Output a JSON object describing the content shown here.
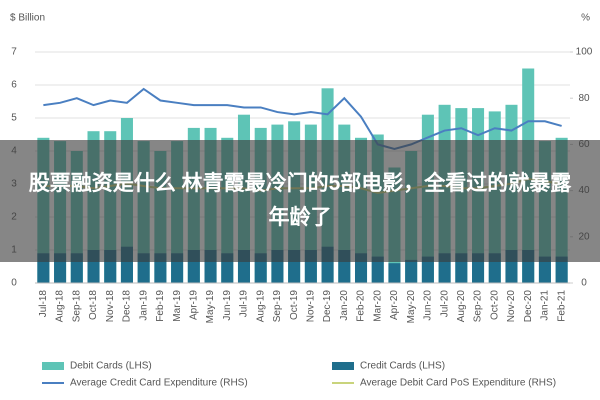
{
  "chart_data": {
    "type": "bar_line",
    "y_unit": "$ Billion",
    "y2_unit": "%",
    "categories": [
      "Jul-18",
      "Aug-18",
      "Sep-18",
      "Oct-18",
      "Nov-18",
      "Dec-18",
      "Jan-19",
      "Feb-19",
      "Mar-19",
      "Apr-19",
      "May-19",
      "Jun-19",
      "Jul-19",
      "Aug-19",
      "Sep-19",
      "Oct-19",
      "Nov-19",
      "Dec-19",
      "Jan-20",
      "Feb-20",
      "Mar-20",
      "Apr-20",
      "May-20",
      "Jun-20",
      "Jul-20",
      "Aug-20",
      "Sep-20",
      "Oct-20",
      "Nov-20",
      "Dec-20",
      "Jan-21",
      "Feb-21"
    ],
    "series": [
      {
        "name": "Debit Cards (LHS)",
        "kind": "bar",
        "color": "#5ec4b6",
        "values": [
          4.4,
          4.3,
          4.0,
          4.6,
          4.6,
          5.0,
          4.3,
          4.0,
          4.3,
          4.7,
          4.7,
          4.4,
          5.1,
          4.7,
          4.8,
          4.9,
          4.8,
          5.9,
          4.8,
          4.4,
          4.5,
          3.5,
          4.0,
          5.1,
          5.4,
          5.3,
          5.3,
          5.2,
          5.4,
          6.5,
          4.3,
          4.4
        ]
      },
      {
        "name": "Credit Cards (LHS)",
        "kind": "bar",
        "color": "#1f6e8c",
        "values": [
          0.9,
          0.9,
          0.9,
          1.0,
          1.0,
          1.1,
          0.9,
          0.9,
          0.9,
          1.0,
          1.0,
          0.9,
          1.0,
          0.9,
          1.0,
          1.0,
          1.0,
          1.1,
          1.0,
          0.9,
          0.8,
          0.6,
          0.7,
          0.8,
          0.9,
          0.9,
          0.9,
          0.9,
          1.0,
          1.0,
          0.8,
          0.8
        ]
      },
      {
        "name": "Average Credit Card Expenditure (RHS)",
        "kind": "line",
        "axis": "y2",
        "color": "#4a7fc1",
        "values": [
          77,
          78,
          80,
          77,
          79,
          78,
          84,
          79,
          78,
          77,
          77,
          77,
          76,
          76,
          74,
          73,
          74,
          73,
          80,
          72,
          60,
          58,
          60,
          63,
          66,
          67,
          64,
          67,
          66,
          70,
          70,
          68
        ]
      },
      {
        "name": "Average Debit Card PoS Expenditure (RHS)",
        "kind": "line",
        "axis": "y2",
        "color": "#c9d47c",
        "values": [
          42,
          42,
          42,
          41,
          42,
          43,
          42,
          41,
          41,
          41,
          41,
          41,
          41,
          40,
          41,
          41,
          41,
          42,
          42,
          41,
          39,
          40,
          41,
          42,
          42,
          41,
          41,
          42,
          43,
          45,
          44,
          43
        ]
      }
    ],
    "ylim": [
      0,
      7
    ],
    "yticks": [
      0,
      1,
      2,
      3,
      4,
      5,
      6,
      7
    ],
    "y2lim": [
      0,
      100
    ],
    "y2ticks": [
      0,
      20,
      40,
      60,
      80,
      100
    ],
    "grid": true
  },
  "banner_text": "股票融资是什么 林青霞最冷门的5部电影，全看过的就暴露年龄了"
}
